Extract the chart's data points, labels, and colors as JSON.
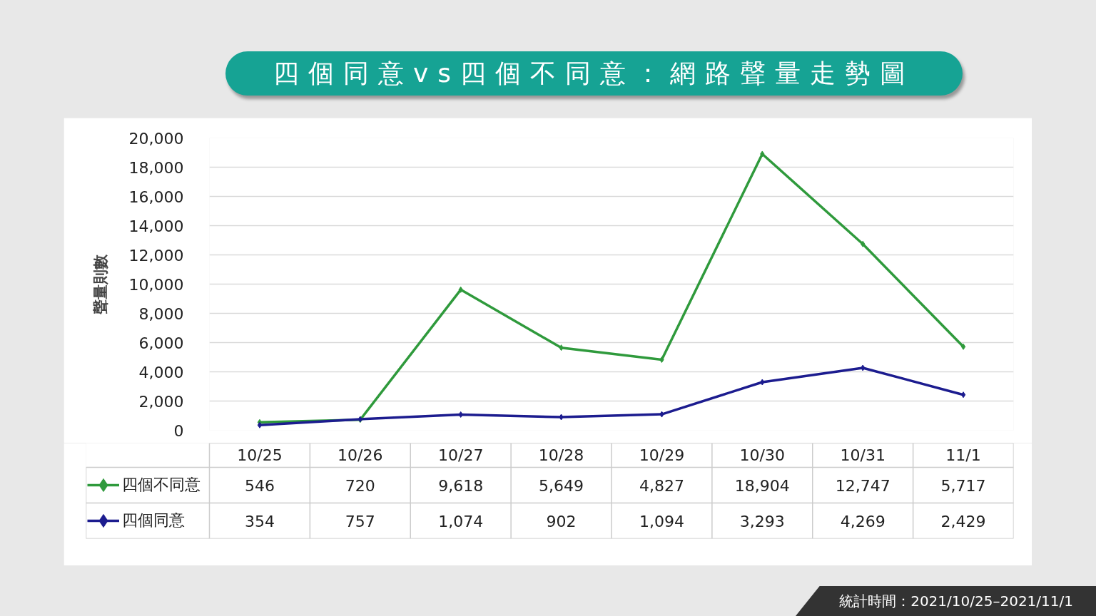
{
  "chart_data": {
    "type": "line",
    "title": "四個同意vs四個不同意：網路聲量走勢圖",
    "ylabel": "聲量則數",
    "categories": [
      "10/25",
      "10/26",
      "10/27",
      "10/28",
      "10/29",
      "10/30",
      "10/31",
      "11/1"
    ],
    "series": [
      {
        "name": "四個不同意",
        "color": "#2f9a3c",
        "values": [
          546,
          720,
          9618,
          5649,
          4827,
          18904,
          12747,
          5717
        ],
        "value_labels": [
          "546",
          "720",
          "9,618",
          "5,649",
          "4,827",
          "18,904",
          "12,747",
          "5,717"
        ]
      },
      {
        "name": "四個同意",
        "color": "#1c1c8f",
        "values": [
          354,
          757,
          1074,
          902,
          1094,
          3293,
          4269,
          2429
        ],
        "value_labels": [
          "354",
          "757",
          "1,074",
          "902",
          "1,094",
          "3,293",
          "4,269",
          "2,429"
        ]
      }
    ],
    "ylim": [
      0,
      20000
    ],
    "yticks": [
      0,
      {
        "value": 2000,
        "label": "2,000"
      },
      {
        "value": 4000,
        "label": "4,000"
      },
      {
        "value": 6000,
        "label": "6,000"
      },
      {
        "value": 8000,
        "label": "8,000"
      },
      {
        "value": 10000,
        "label": "10,000"
      },
      {
        "value": 12000,
        "label": "12,000"
      },
      {
        "value": 14000,
        "label": "14,000"
      },
      {
        "value": 16000,
        "label": "16,000"
      },
      {
        "value": 18000,
        "label": "18,000"
      },
      {
        "value": 20000,
        "label": "20,000"
      }
    ],
    "grid": "y",
    "legend": "bottom left",
    "marker": "diamond",
    "line_style": "solid",
    "annotations": [
      "統計時間：2021/10/25–2021/11/1"
    ]
  }
}
